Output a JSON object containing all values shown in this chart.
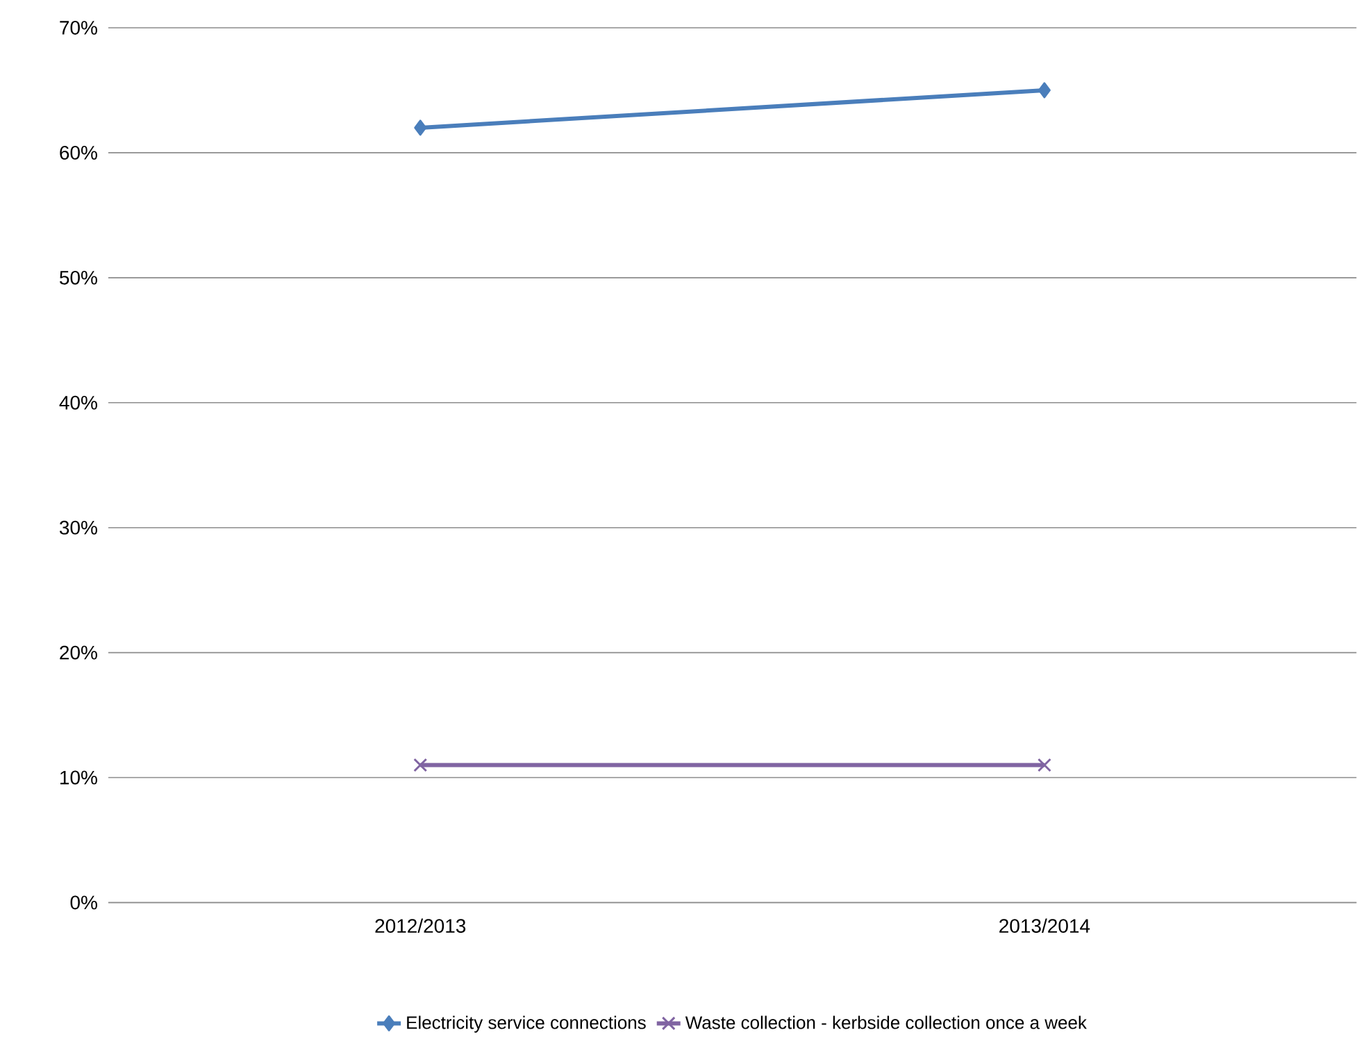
{
  "chart_data": {
    "type": "line",
    "categories": [
      "2012/2013",
      "2013/2014"
    ],
    "series": [
      {
        "name": "Electricity  service connections",
        "color": "#4a7ebb",
        "values": [
          62,
          65
        ],
        "marker": "diamond"
      },
      {
        "name": "Waste collection - kerbside collection once a week",
        "color": "#8064a2",
        "values": [
          11,
          11
        ],
        "marker": "cross"
      }
    ],
    "ylim": [
      0,
      70
    ],
    "yticks": [
      {
        "value": 0,
        "label": "0%"
      },
      {
        "value": 10,
        "label": "10%"
      },
      {
        "value": 20,
        "label": "20%"
      },
      {
        "value": 30,
        "label": "30%"
      },
      {
        "value": 40,
        "label": "40%"
      },
      {
        "value": 50,
        "label": "50%"
      },
      {
        "value": 60,
        "label": "60%"
      },
      {
        "value": 70,
        "label": "70%"
      }
    ],
    "grid": "y",
    "legend": "bottom",
    "line_style": "solid"
  }
}
